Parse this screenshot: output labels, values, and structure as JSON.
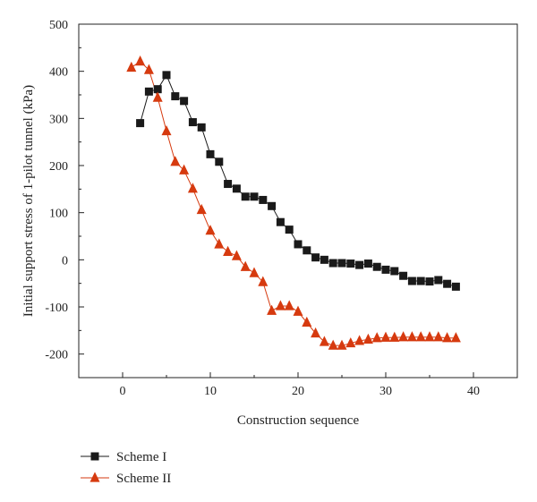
{
  "chart_data": {
    "type": "line",
    "title": "",
    "xlabel": "Construction sequence",
    "ylabel": "Initial support stress of 1-pilot tunnel (kPa)",
    "xlim": [
      -5,
      45
    ],
    "ylim": [
      -250,
      500
    ],
    "xticks": [
      0,
      10,
      20,
      30,
      40
    ],
    "yticks": [
      -200,
      -100,
      0,
      100,
      200,
      300,
      400,
      500
    ],
    "grid": false,
    "legend_position": "bottom-left",
    "series": [
      {
        "name": "Scheme I",
        "color": "#1a1a1a",
        "marker": "square",
        "x": [
          2,
          3,
          4,
          5,
          6,
          7,
          8,
          9,
          10,
          11,
          12,
          13,
          14,
          15,
          16,
          17,
          18,
          19,
          20,
          21,
          22,
          23,
          24,
          25,
          26,
          27,
          28,
          29,
          30,
          31,
          32,
          33,
          34,
          35,
          36,
          37,
          38
        ],
        "y": [
          290,
          357,
          362,
          392,
          347,
          337,
          292,
          281,
          224,
          208,
          161,
          151,
          134,
          134,
          127,
          114,
          80,
          64,
          33,
          20,
          5,
          0,
          -7,
          -7,
          -8,
          -11,
          -8,
          -15,
          -21,
          -24,
          -34,
          -45,
          -45,
          -46,
          -43,
          -51,
          -57
        ]
      },
      {
        "name": "Scheme II",
        "color": "#d63a0f",
        "marker": "triangle",
        "x": [
          1,
          2,
          3,
          4,
          5,
          6,
          7,
          8,
          9,
          10,
          11,
          12,
          13,
          14,
          15,
          16,
          17,
          18,
          19,
          20,
          21,
          22,
          23,
          24,
          25,
          26,
          27,
          28,
          29,
          30,
          31,
          32,
          33,
          34,
          35,
          36,
          37,
          38
        ],
        "y": [
          408,
          421,
          403,
          344,
          273,
          208,
          190,
          151,
          106,
          62,
          33,
          17,
          8,
          -15,
          -28,
          -47,
          -108,
          -98,
          -98,
          -110,
          -133,
          -156,
          -174,
          -182,
          -182,
          -177,
          -172,
          -169,
          -166,
          -165,
          -165,
          -164,
          -164,
          -164,
          -164,
          -164,
          -166,
          -166
        ]
      }
    ]
  }
}
